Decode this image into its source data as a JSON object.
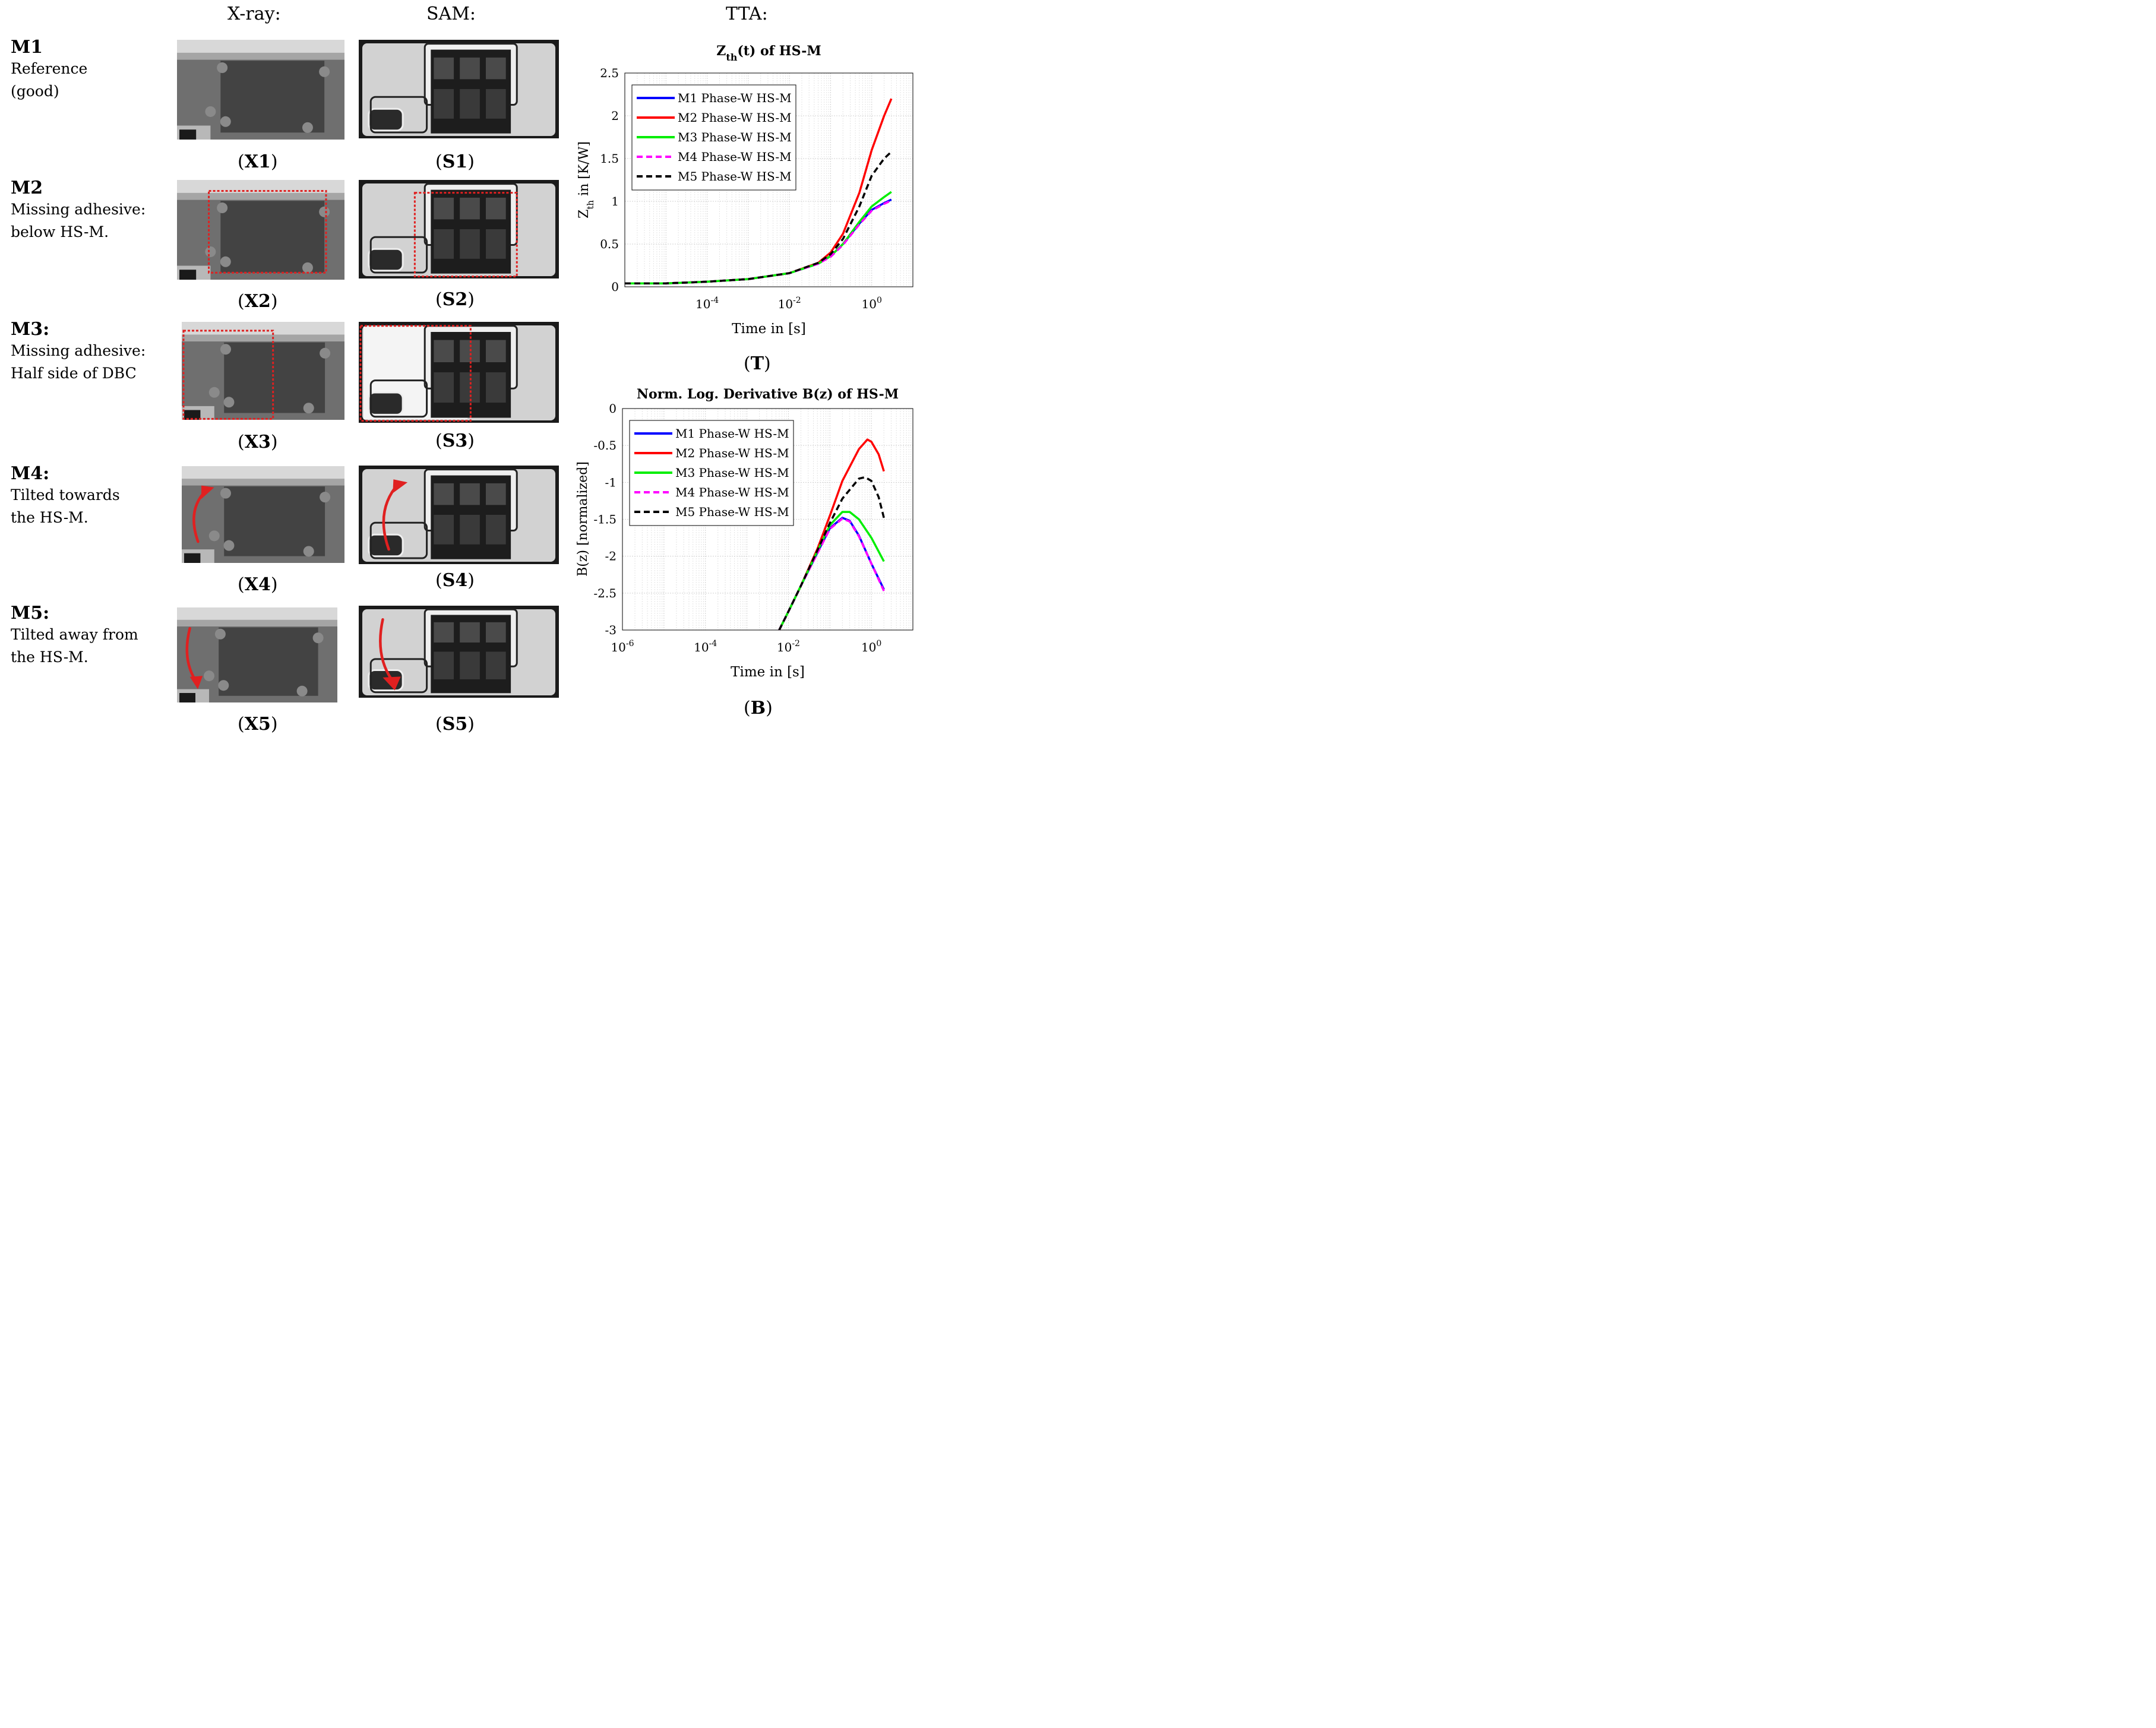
{
  "headers": {
    "xray": "X-ray:",
    "sam": "SAM:",
    "tta": "TTA:"
  },
  "rows": [
    {
      "name": "M1",
      "desc": [
        "Reference",
        "(good)"
      ],
      "xcap": "X1",
      "scap": "S1",
      "defect": "none"
    },
    {
      "name": "M2",
      "desc": [
        "Missing adhesive:",
        "below HS-M."
      ],
      "xcap": "X2",
      "scap": "S2",
      "defect": "box-below"
    },
    {
      "name": "M3:",
      "desc": [
        "Missing adhesive:",
        "Half side of DBC"
      ],
      "xcap": "X3",
      "scap": "S3",
      "defect": "box-half"
    },
    {
      "name": "M4:",
      "desc": [
        "Tilted towards",
        "the HS-M."
      ],
      "xcap": "X4",
      "scap": "S4",
      "defect": "arrow-up"
    },
    {
      "name": "M5:",
      "desc": [
        "Tilted away from",
        "the HS-M."
      ],
      "xcap": "X5",
      "scap": "S5",
      "defect": "arrow-down"
    }
  ],
  "panel_labels": {
    "zth": "T",
    "bz": "B"
  },
  "colors": {
    "M1": "#0000ff",
    "M2": "#ff0000",
    "M3": "#00ee00",
    "M4": "#ff00ff",
    "M5": "#000000",
    "defect": "#e02020"
  },
  "chart_data": [
    {
      "type": "line",
      "title_main": "Z",
      "title_sub": "th",
      "title_rest": "(t) of HS-M",
      "xlabel": "Time in [s]",
      "ylabel_main": "Z",
      "ylabel_sub": "th",
      "ylabel_rest": " in [K/W]",
      "xscale": "log",
      "xlim": [
        1e-06,
        10
      ],
      "ylim": [
        0,
        2.5
      ],
      "xticks": [
        {
          "v": 0.0001,
          "b": "10",
          "e": "-4"
        },
        {
          "v": 0.01,
          "b": "10",
          "e": "-2"
        },
        {
          "v": 1,
          "b": "10",
          "e": "0"
        }
      ],
      "yticks": [
        {
          "v": 0,
          "t": "0"
        },
        {
          "v": 0.5,
          "t": "0.5"
        },
        {
          "v": 1,
          "t": "1"
        },
        {
          "v": 1.5,
          "t": "1.5"
        },
        {
          "v": 2,
          "t": "2"
        },
        {
          "v": 2.5,
          "t": "2.5"
        }
      ],
      "grid": true,
      "legend": "top-left",
      "series": [
        {
          "name": "M1 Phase-W HS-M",
          "color": "#0000ff",
          "dash": false,
          "x": [
            1e-06,
            1e-05,
            0.0001,
            0.001,
            0.01,
            0.05,
            0.1,
            0.2,
            0.5,
            1,
            2,
            3
          ],
          "y": [
            0.04,
            0.04,
            0.06,
            0.09,
            0.16,
            0.27,
            0.36,
            0.5,
            0.74,
            0.9,
            0.98,
            1.02
          ]
        },
        {
          "name": "M2 Phase-W HS-M",
          "color": "#ff0000",
          "dash": false,
          "x": [
            1e-06,
            1e-05,
            0.0001,
            0.001,
            0.01,
            0.05,
            0.1,
            0.2,
            0.5,
            1,
            2,
            3
          ],
          "y": [
            0.04,
            0.04,
            0.06,
            0.09,
            0.16,
            0.28,
            0.4,
            0.62,
            1.1,
            1.6,
            2.0,
            2.2
          ]
        },
        {
          "name": "M3 Phase-W HS-M",
          "color": "#00ee00",
          "dash": false,
          "x": [
            1e-06,
            1e-05,
            0.0001,
            0.001,
            0.01,
            0.05,
            0.1,
            0.2,
            0.5,
            1,
            2,
            3
          ],
          "y": [
            0.04,
            0.04,
            0.06,
            0.09,
            0.16,
            0.27,
            0.36,
            0.5,
            0.76,
            0.94,
            1.05,
            1.11
          ]
        },
        {
          "name": "M4 Phase-W HS-M",
          "color": "#ff00ff",
          "dash": true,
          "x": [
            1e-06,
            1e-05,
            0.0001,
            0.001,
            0.01,
            0.05,
            0.1,
            0.2,
            0.5,
            1,
            2,
            3
          ],
          "y": [
            0.04,
            0.04,
            0.06,
            0.09,
            0.16,
            0.27,
            0.35,
            0.49,
            0.73,
            0.89,
            0.97,
            1.01
          ]
        },
        {
          "name": "M5 Phase-W HS-M",
          "color": "#000000",
          "dash": true,
          "x": [
            1e-06,
            1e-05,
            0.0001,
            0.001,
            0.01,
            0.05,
            0.1,
            0.2,
            0.5,
            1,
            2,
            3
          ],
          "y": [
            0.04,
            0.04,
            0.06,
            0.09,
            0.16,
            0.28,
            0.38,
            0.56,
            0.94,
            1.3,
            1.5,
            1.58
          ]
        }
      ]
    },
    {
      "type": "line",
      "title": "Norm. Log. Derivative B(z) of HS-M",
      "xlabel": "Time in [s]",
      "ylabel": "B(z) [normalized]",
      "xscale": "log",
      "xlim": [
        1e-06,
        10
      ],
      "ylim": [
        -3,
        0
      ],
      "xticks": [
        {
          "v": 1e-06,
          "b": "10",
          "e": "-6"
        },
        {
          "v": 0.0001,
          "b": "10",
          "e": "-4"
        },
        {
          "v": 0.01,
          "b": "10",
          "e": "-2"
        },
        {
          "v": 1,
          "b": "10",
          "e": "0"
        }
      ],
      "yticks": [
        {
          "v": 0,
          "t": "0"
        },
        {
          "v": -0.5,
          "t": "-0.5"
        },
        {
          "v": -1,
          "t": "-1"
        },
        {
          "v": -1.5,
          "t": "-1.5"
        },
        {
          "v": -2,
          "t": "-2"
        },
        {
          "v": -2.5,
          "t": "-2.5"
        },
        {
          "v": -3,
          "t": "-3"
        }
      ],
      "grid": true,
      "legend": "top-left",
      "series": [
        {
          "name": "M1 Phase-W HS-M",
          "color": "#0000ff",
          "dash": false,
          "x": [
            0.006,
            0.01,
            0.02,
            0.05,
            0.1,
            0.2,
            0.3,
            0.5,
            1,
            2
          ],
          "y": [
            -3.0,
            -2.75,
            -2.4,
            -1.95,
            -1.62,
            -1.48,
            -1.52,
            -1.72,
            -2.1,
            -2.45
          ]
        },
        {
          "name": "M2 Phase-W HS-M",
          "color": "#ff0000",
          "dash": false,
          "x": [
            0.006,
            0.01,
            0.02,
            0.05,
            0.1,
            0.2,
            0.5,
            0.8,
            1,
            1.5,
            2
          ],
          "y": [
            -3.0,
            -2.75,
            -2.4,
            -1.9,
            -1.45,
            -0.98,
            -0.55,
            -0.42,
            -0.45,
            -0.62,
            -0.85
          ]
        },
        {
          "name": "M3 Phase-W HS-M",
          "color": "#00ee00",
          "dash": false,
          "x": [
            0.006,
            0.01,
            0.02,
            0.05,
            0.1,
            0.2,
            0.3,
            0.5,
            1,
            2
          ],
          "y": [
            -3.0,
            -2.75,
            -2.4,
            -1.93,
            -1.58,
            -1.4,
            -1.4,
            -1.5,
            -1.75,
            -2.07
          ]
        },
        {
          "name": "M4 Phase-W HS-M",
          "color": "#ff00ff",
          "dash": true,
          "x": [
            0.006,
            0.01,
            0.02,
            0.05,
            0.1,
            0.2,
            0.3,
            0.5,
            1,
            2
          ],
          "y": [
            -3.0,
            -2.75,
            -2.4,
            -1.96,
            -1.63,
            -1.49,
            -1.53,
            -1.73,
            -2.1,
            -2.47
          ]
        },
        {
          "name": "M5 Phase-W HS-M",
          "color": "#000000",
          "dash": true,
          "x": [
            0.006,
            0.01,
            0.02,
            0.05,
            0.1,
            0.2,
            0.5,
            0.7,
            1,
            1.5,
            2
          ],
          "y": [
            -3.0,
            -2.75,
            -2.4,
            -1.92,
            -1.55,
            -1.22,
            -0.95,
            -0.93,
            -0.98,
            -1.2,
            -1.48
          ]
        }
      ]
    }
  ]
}
